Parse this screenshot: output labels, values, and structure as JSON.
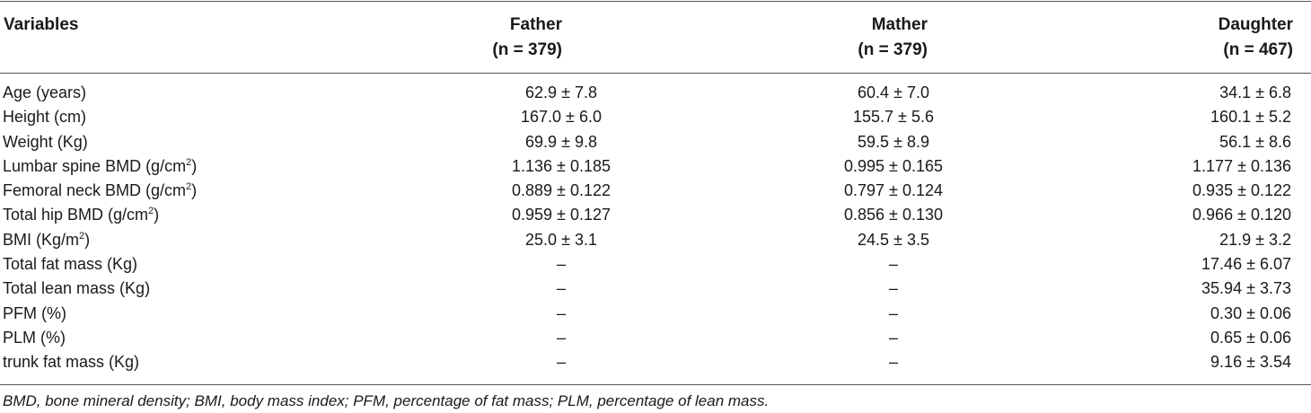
{
  "header": {
    "variables": "Variables",
    "father_label": "Father",
    "father_n": "(n = 379)",
    "mother_label": "Mather",
    "mother_n": "(n = 379)",
    "daughter_label": "Daughter",
    "daughter_n": "(n = 467)"
  },
  "rows": [
    {
      "variable": "Age (years)",
      "sup": "",
      "father": "62.9  ±  7.8",
      "mother": "60.4 ± 7.0",
      "daughter": "34.1 ± 6.8"
    },
    {
      "variable": "Height (cm)",
      "sup": "",
      "father": "167.0  ±  6.0",
      "mother": "155.7 ± 5.6",
      "daughter": "160.1 ± 5.2"
    },
    {
      "variable": "Weight (Kg)",
      "sup": "",
      "father": "69.9  ±  9.8",
      "mother": "59.5 ± 8.9",
      "daughter": "56.1 ± 8.6"
    },
    {
      "variable": "Lumbar spine BMD (g/cm",
      "sup": "2",
      "suffix": ")",
      "father": "1.136 ± 0.185",
      "mother": "0.995 ± 0.165",
      "daughter": "1.177 ± 0.136"
    },
    {
      "variable": "Femoral neck BMD (g/cm",
      "sup": "2",
      "suffix": ")",
      "father": "0.889 ± 0.122",
      "mother": "0.797 ± 0.124",
      "daughter": "0.935 ± 0.122"
    },
    {
      "variable": "Total hip BMD (g/cm",
      "sup": "2",
      "suffix": ")",
      "father": "0.959 ± 0.127",
      "mother": "0.856 ± 0.130",
      "daughter": "0.966 ± 0.120"
    },
    {
      "variable": "BMI (Kg/m",
      "sup": "2",
      "suffix": ")",
      "father": "25.0 ± 3.1",
      "mother": "24.5 ± 3.5",
      "daughter": "21.9 ± 3.2"
    },
    {
      "variable": "Total fat mass (Kg)",
      "sup": "",
      "father": "–",
      "mother": "–",
      "daughter": "17.46 ± 6.07"
    },
    {
      "variable": "Total lean mass (Kg)",
      "sup": "",
      "father": "–",
      "mother": "–",
      "daughter": "35.94 ± 3.73"
    },
    {
      "variable": "PFM (%)",
      "sup": "",
      "father": "–",
      "mother": "–",
      "daughter": "0.30 ± 0.06"
    },
    {
      "variable": "PLM (%)",
      "sup": "",
      "father": "–",
      "mother": "–",
      "daughter": "0.65 ± 0.06"
    },
    {
      "variable": "trunk fat mass (Kg)",
      "sup": "",
      "father": "–",
      "mother": "–",
      "daughter": "9.16 ± 3.54"
    }
  ],
  "footnote": "BMD, bone mineral density; BMI, body mass index; PFM, percentage of fat mass; PLM, percentage of lean mass."
}
